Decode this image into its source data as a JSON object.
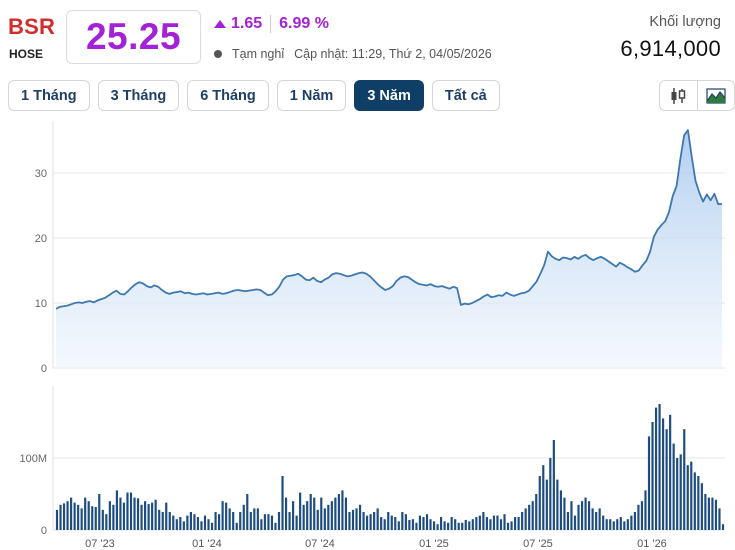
{
  "header": {
    "ticker": "BSR",
    "exchange": "HOSE",
    "price": "25.25",
    "change": "1.65",
    "change_pct": "6.99 %",
    "status": "Tạm nghỉ",
    "updated": "Cập nhật: 11:29, Thứ 2, 04/05/2026",
    "volume_label": "Khối lượng",
    "volume_value": "6,914,000"
  },
  "tabs": [
    {
      "label": "1 Tháng",
      "active": false
    },
    {
      "label": "3 Tháng",
      "active": false
    },
    {
      "label": "6 Tháng",
      "active": false
    },
    {
      "label": "1 Năm",
      "active": false
    },
    {
      "label": "3 Năm",
      "active": true
    },
    {
      "label": "Tất cả",
      "active": false
    }
  ],
  "chart_toggle": {
    "candlestick_icon": "candlestick-icon",
    "area_icon": "mountain-area-icon",
    "active": "area"
  },
  "colors": {
    "accent_purple": "#a321d6",
    "ticker_red": "#cf2e2e",
    "line_blue": "#3d78b0",
    "bar_navy": "#1d4d80",
    "tab_active": "#0f3f66"
  },
  "chart_data": [
    {
      "type": "area",
      "title": "",
      "xlabel": "",
      "ylabel": "",
      "ylim": [
        0,
        38
      ],
      "yticks": [
        0,
        10,
        20,
        30
      ],
      "ytick_labels": [
        "0",
        "10",
        "20",
        "30"
      ],
      "grid": true,
      "x_tick_labels": [
        "07 '23",
        "01 '24",
        "07 '24",
        "01 '25",
        "07 '25",
        "01 '26"
      ],
      "series": [
        {
          "values": [
            9.1,
            9.4,
            9.5,
            9.6,
            9.8,
            10.0,
            10.1,
            10.0,
            10.2,
            10.3,
            10.1,
            10.4,
            10.6,
            10.8,
            11.2,
            11.6,
            11.9,
            11.4,
            11.3,
            11.8,
            12.4,
            12.9,
            13.2,
            13.0,
            12.6,
            12.4,
            12.7,
            12.5,
            12.0,
            11.6,
            11.4,
            11.6,
            11.7,
            11.8,
            11.5,
            11.6,
            11.4,
            11.3,
            11.4,
            11.5,
            11.3,
            11.4,
            11.5,
            11.6,
            11.4,
            11.5,
            11.7,
            11.9,
            12.0,
            11.9,
            11.8,
            11.9,
            12.0,
            12.1,
            12.0,
            11.6,
            11.2,
            11.3,
            11.8,
            12.5,
            13.6,
            14.1,
            14.2,
            14.3,
            14.5,
            14.1,
            13.6,
            13.5,
            13.9,
            13.4,
            13.2,
            13.6,
            13.9,
            14.4,
            14.6,
            14.5,
            14.3,
            14.1,
            14.2,
            14.4,
            14.6,
            14.7,
            14.5,
            14.1,
            13.5,
            12.9,
            12.4,
            12.0,
            12.2,
            12.6,
            13.4,
            13.9,
            14.1,
            14.0,
            13.6,
            13.2,
            12.9,
            12.8,
            12.7,
            12.9,
            12.6,
            12.5,
            12.6,
            12.4,
            12.2,
            12.5,
            12.3,
            9.7,
            9.9,
            9.8,
            10.0,
            10.3,
            10.6,
            11.0,
            11.3,
            10.9,
            11.0,
            11.2,
            11.1,
            11.6,
            11.3,
            11.1,
            11.3,
            11.5,
            11.6,
            11.9,
            12.6,
            13.3,
            14.5,
            15.8,
            17.9,
            17.2,
            16.8,
            16.6,
            17.0,
            16.9,
            16.7,
            17.1,
            16.8,
            17.2,
            17.4,
            16.9,
            16.6,
            16.9,
            17.1,
            16.8,
            16.4,
            16.0,
            15.6,
            16.2,
            15.9,
            15.5,
            15.2,
            14.8,
            15.0,
            15.8,
            16.5,
            17.9,
            20.2,
            21.3,
            22.0,
            22.6,
            24.0,
            26.5,
            28.0,
            32.2,
            35.8,
            36.6,
            32.5,
            28.8,
            27.0,
            25.6,
            26.7,
            25.8,
            26.8,
            25.2,
            25.25
          ],
          "color": "#3d78b0"
        }
      ]
    },
    {
      "type": "bar",
      "title": "",
      "ylim": [
        0,
        200
      ],
      "yticks": [
        0,
        100
      ],
      "ytick_labels": [
        "0",
        "100M"
      ],
      "grid": true,
      "series": [
        {
          "values": [
            28,
            35,
            37,
            40,
            45,
            38,
            35,
            30,
            45,
            40,
            33,
            32,
            50,
            28,
            22,
            40,
            35,
            55,
            45,
            38,
            52,
            52,
            45,
            44,
            35,
            40,
            36,
            38,
            42,
            28,
            25,
            38,
            25,
            20,
            15,
            18,
            12,
            20,
            25,
            22,
            18,
            12,
            20,
            15,
            10,
            25,
            22,
            40,
            38,
            30,
            25,
            10,
            25,
            35,
            50,
            25,
            30,
            30,
            15,
            22,
            22,
            20,
            10,
            25,
            75,
            45,
            25,
            40,
            20,
            52,
            35,
            40,
            50,
            45,
            28,
            45,
            30,
            35,
            40,
            45,
            50,
            55,
            45,
            25,
            28,
            30,
            35,
            25,
            20,
            22,
            25,
            30,
            18,
            15,
            25,
            20,
            18,
            12,
            25,
            22,
            14,
            15,
            10,
            20,
            18,
            22,
            15,
            12,
            8,
            18,
            12,
            10,
            18,
            15,
            10,
            10,
            14,
            12,
            15,
            18,
            20,
            25,
            18,
            15,
            20,
            20,
            15,
            22,
            10,
            12,
            18,
            18,
            25,
            30,
            35,
            40,
            50,
            75,
            90,
            70,
            100,
            125,
            70,
            55,
            45,
            25,
            40,
            20,
            35,
            40,
            45,
            40,
            30,
            25,
            30,
            20,
            15,
            15,
            12,
            15,
            18,
            12,
            15,
            20,
            25,
            35,
            40,
            55,
            130,
            150,
            170,
            175,
            155,
            140,
            160,
            120,
            100,
            105,
            140,
            90,
            95,
            80,
            75,
            65,
            50,
            45,
            45,
            42,
            30,
            8
          ]
        }
      ]
    }
  ]
}
